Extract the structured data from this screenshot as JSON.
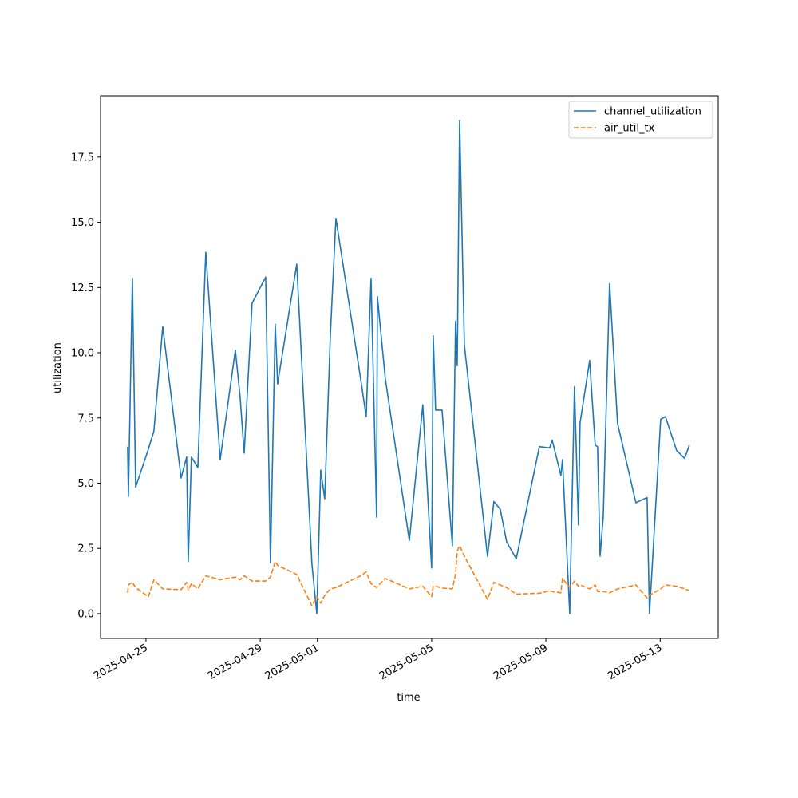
{
  "chart_data": {
    "type": "line",
    "xlabel": "time",
    "ylabel": "utilization",
    "x": [
      "2025-04-24 08:35",
      "2025-04-24 09:15",
      "2025-04-24 12:35",
      "2025-04-24 15:20",
      "2025-04-25 02:00",
      "2025-04-25 06:40",
      "2025-04-25 14:05",
      "2025-04-26 05:30",
      "2025-04-26 10:10",
      "2025-04-26 11:30",
      "2025-04-26 14:10",
      "2025-04-26 19:35",
      "2025-04-27 02:15",
      "2025-04-27 14:20",
      "2025-04-28 03:05",
      "2025-04-28 07:05",
      "2025-04-28 10:30",
      "2025-04-28 17:10",
      "2025-04-29 04:35",
      "2025-04-29 08:35",
      "2025-04-29 12:35",
      "2025-04-29 14:35",
      "2025-04-30 06:40",
      "2025-04-30 19:25",
      "2025-04-30 23:30",
      "2025-05-01 02:50",
      "2025-05-01 06:10",
      "2025-05-01 10:55",
      "2025-05-01 15:35",
      "2025-05-02 12:20",
      "2025-05-02 17:00",
      "2025-05-02 21:05",
      "2025-05-03 01:45",
      "2025-05-03 02:25",
      "2025-05-03 09:05",
      "2025-05-04 05:15",
      "2025-05-04 16:35",
      "2025-05-05 00:00",
      "2025-05-05 01:20",
      "2025-05-05 03:20",
      "2025-05-05 08:45",
      "2025-05-05 17:25",
      "2025-05-05 20:05",
      "2025-05-05 21:30",
      "2025-05-05 23:30",
      "2025-05-06 03:30",
      "2025-05-06 22:55",
      "2025-05-07 04:20",
      "2025-05-07 09:40",
      "2025-05-07 15:00",
      "2025-05-07 23:05",
      "2025-05-08 18:30",
      "2025-05-09 03:10",
      "2025-05-09 05:15",
      "2025-05-09 12:35",
      "2025-05-09 13:55",
      "2025-05-09 20:00",
      "2025-05-10 00:00",
      "2025-05-10 03:20",
      "2025-05-10 04:40",
      "2025-05-10 12:45",
      "2025-05-10 17:25",
      "2025-05-10 19:25",
      "2025-05-10 21:30",
      "2025-05-11 00:10",
      "2025-05-11 05:30",
      "2025-05-11 12:10",
      "2025-05-12 03:35",
      "2025-05-12 13:00",
      "2025-05-12 15:00",
      "2025-05-13 00:25",
      "2025-05-13 04:25",
      "2025-05-13 13:50",
      "2025-05-13 20:30",
      "2025-05-14 00:30"
    ],
    "series": [
      {
        "name": "channel_utilization",
        "color": "#1f77b4",
        "dash": false,
        "values": [
          6.4,
          4.5,
          12.85,
          4.85,
          6.3,
          7.0,
          11.0,
          5.2,
          6.0,
          2.0,
          6.0,
          5.6,
          13.85,
          5.9,
          10.1,
          8.3,
          6.15,
          11.9,
          12.9,
          1.95,
          11.1,
          8.8,
          13.4,
          1.9,
          0.0,
          5.5,
          4.4,
          10.7,
          15.15,
          9.0,
          7.55,
          12.85,
          3.7,
          12.15,
          9.0,
          2.8,
          8.0,
          1.75,
          10.65,
          7.8,
          7.8,
          2.6,
          11.2,
          9.5,
          18.9,
          10.3,
          2.2,
          4.3,
          4.0,
          2.75,
          2.1,
          6.4,
          6.35,
          6.65,
          5.3,
          5.9,
          0.0,
          8.7,
          3.4,
          7.3,
          9.7,
          6.45,
          6.4,
          2.2,
          3.7,
          12.65,
          7.3,
          4.25,
          4.45,
          0.0,
          7.45,
          7.55,
          6.25,
          5.95,
          6.45
        ]
      },
      {
        "name": "air_util_tx",
        "color": "#ff7f0e",
        "dash": true,
        "values": [
          0.8,
          1.1,
          1.2,
          1.0,
          0.65,
          1.3,
          0.95,
          0.92,
          1.2,
          0.9,
          1.15,
          0.95,
          1.45,
          1.3,
          1.4,
          1.3,
          1.45,
          1.25,
          1.25,
          1.4,
          2.0,
          1.85,
          1.5,
          0.3,
          0.65,
          0.4,
          0.7,
          0.95,
          1.0,
          1.45,
          1.6,
          1.15,
          1.0,
          1.05,
          1.35,
          0.95,
          1.05,
          0.65,
          1.05,
          1.05,
          0.98,
          0.95,
          1.5,
          2.4,
          2.6,
          2.2,
          0.55,
          1.2,
          1.1,
          1.0,
          0.75,
          0.78,
          0.88,
          0.85,
          0.8,
          1.35,
          1.0,
          1.25,
          1.05,
          1.1,
          0.95,
          1.1,
          0.85,
          0.85,
          0.85,
          0.8,
          0.95,
          1.1,
          0.6,
          0.7,
          0.95,
          1.1,
          1.05,
          0.95,
          0.88
        ]
      }
    ],
    "xlim": [
      "2025-04-23 09:50",
      "2025-05-15 00:45"
    ],
    "xticks": [
      "2025-04-25",
      "2025-04-29",
      "2025-05-01",
      "2025-05-05",
      "2025-05-09",
      "2025-05-13"
    ],
    "ylim": [
      -0.95,
      19.85
    ],
    "yticks": [
      {
        "value": 0,
        "label": "0.0"
      },
      2.5,
      {
        "value": 5,
        "label": "5.0"
      },
      7.5,
      {
        "value": 10,
        "label": "10.0"
      },
      12.5,
      {
        "value": 15,
        "label": "15.0"
      },
      17.5
    ],
    "legend": "upper right",
    "grid": false
  }
}
